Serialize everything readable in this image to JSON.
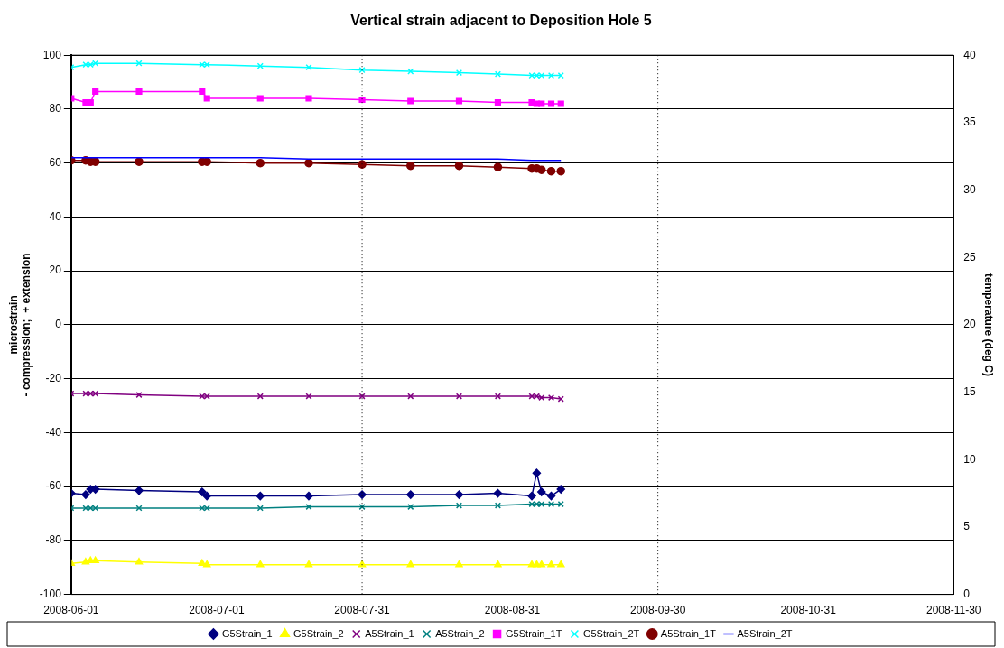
{
  "chart_data": {
    "type": "line",
    "title": "Vertical strain adjacent to Deposition Hole 5",
    "ylabel": "microstrain\n- compression;  + extension",
    "y2label": "temperature (deg C)",
    "x": [
      "2008-06-01",
      "2008-06-04",
      "2008-06-05",
      "2008-06-06",
      "2008-06-15",
      "2008-06-28",
      "2008-06-29",
      "2008-07-10",
      "2008-07-20",
      "2008-07-31",
      "2008-08-10",
      "2008-08-20",
      "2008-08-28",
      "2008-09-04",
      "2008-09-05",
      "2008-09-06",
      "2008-09-08",
      "2008-09-10"
    ],
    "xlim": [
      "2008-06-01",
      "2008-11-30"
    ],
    "xticks": [
      "2008-06-01",
      "2008-07-01",
      "2008-07-31",
      "2008-08-31",
      "2008-09-30",
      "2008-10-31",
      "2008-11-30"
    ],
    "ylim": [
      -100,
      100
    ],
    "yticks": [
      -100,
      -80,
      -60,
      -40,
      -20,
      0,
      20,
      40,
      60,
      80,
      100
    ],
    "y2lim": [
      0,
      40
    ],
    "y2ticks": [
      0,
      5,
      10,
      15,
      20,
      25,
      30,
      35,
      40
    ],
    "grid": "y",
    "legend": "bottom",
    "ref_lines": [
      {
        "axis": "x",
        "value": "2008-07-31",
        "color": "#000000",
        "line_style": "dotted"
      },
      {
        "axis": "x",
        "value": "2008-09-30",
        "color": "#000000",
        "line_style": "dotted"
      }
    ],
    "series": [
      {
        "name": "G5Strain_1",
        "color": "#000080",
        "marker": "diamond",
        "values": [
          -62.5,
          -63,
          -61,
          -61,
          -61.5,
          -62,
          -63.5,
          -63.5,
          -63.5,
          -63,
          -63,
          -63,
          -62.5,
          -63.5,
          -55,
          -62,
          -63.5,
          -61
        ]
      },
      {
        "name": "G5Strain_2",
        "color": "#ffff00",
        "marker": "triangle",
        "values": [
          -88.5,
          -88,
          -87.5,
          -87.5,
          -88,
          -88.5,
          -89,
          -89,
          -89,
          -89,
          -89,
          -89,
          -89,
          -89,
          -89,
          -89,
          -89,
          -89
        ]
      },
      {
        "name": "A5Strain_1",
        "color": "#800080",
        "marker": "cross",
        "values": [
          -25.5,
          -25.5,
          -25.5,
          -25.5,
          -26,
          -26.5,
          -26.5,
          -26.5,
          -26.5,
          -26.5,
          -26.5,
          -26.5,
          -26.5,
          -26.5,
          -26.5,
          -27,
          -27,
          -27.5
        ]
      },
      {
        "name": "A5Strain_2",
        "color": "#008080",
        "marker": "cross",
        "values": [
          -68,
          -68,
          -68,
          -68,
          -68,
          -68,
          -68,
          -68,
          -67.5,
          -67.5,
          -67.5,
          -67,
          -67,
          -66.5,
          -66.5,
          -66.5,
          -66.5,
          -66.5
        ]
      },
      {
        "name": "G5Strain_1T",
        "color": "#ff00ff",
        "marker": "square",
        "axis": "y2",
        "values": [
          36.8,
          36.5,
          36.5,
          37.3,
          37.3,
          37.3,
          36.8,
          36.8,
          36.8,
          36.7,
          36.6,
          36.6,
          36.5,
          36.5,
          36.4,
          36.4,
          36.4,
          36.4
        ]
      },
      {
        "name": "G5Strain_2T",
        "color": "#00ffff",
        "marker": "cross",
        "axis": "y2",
        "values": [
          39.1,
          39.3,
          39.3,
          39.4,
          39.4,
          39.3,
          39.3,
          39.2,
          39.1,
          38.9,
          38.8,
          38.7,
          38.6,
          38.5,
          38.5,
          38.5,
          38.5,
          38.5
        ]
      },
      {
        "name": "A5Strain_1T",
        "color": "#800000",
        "marker": "circle",
        "axis": "y2",
        "values": [
          32.2,
          32.2,
          32.1,
          32.1,
          32.1,
          32.1,
          32.1,
          32.0,
          32.0,
          31.9,
          31.8,
          31.8,
          31.7,
          31.6,
          31.6,
          31.5,
          31.4,
          31.4
        ]
      },
      {
        "name": "A5Strain_2T",
        "color": "#0000ff",
        "marker": "none",
        "axis": "y2",
        "values": [
          32.4,
          32.4,
          32.4,
          32.4,
          32.4,
          32.4,
          32.4,
          32.4,
          32.3,
          32.3,
          32.3,
          32.3,
          32.3,
          32.2,
          32.2,
          32.2,
          32.2,
          32.2
        ]
      }
    ]
  }
}
